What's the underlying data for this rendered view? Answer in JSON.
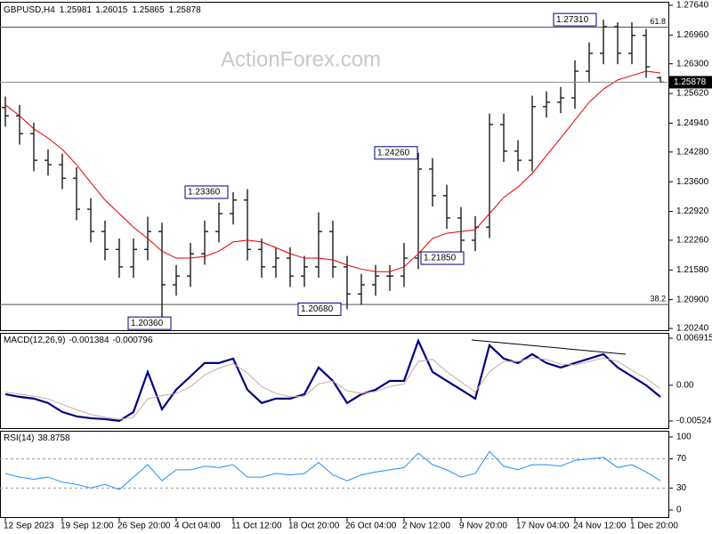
{
  "header": {
    "symbol": "GBPUSD,H4",
    "ohlc": [
      1.25981,
      1.26015,
      1.25865,
      1.25878
    ]
  },
  "watermark": "ActionForex.com",
  "chart_data": [
    {
      "type": "ohlc",
      "color": "#1c1c1c",
      "categories": [
        "12 Sep 2023",
        null,
        null,
        null,
        "19 Sep 12:00",
        null,
        null,
        null,
        "26 Sep 20:00",
        null,
        null,
        null,
        "4 Oct 04:00",
        null,
        null,
        null,
        "11 Oct 12:00",
        null,
        null,
        null,
        "18 Oct 20:00",
        null,
        null,
        null,
        "26 Oct 04:00",
        null,
        null,
        null,
        "2 Nov 12:00",
        null,
        null,
        null,
        "9 Nov 20:00",
        null,
        null,
        null,
        "17 Nov 04:00",
        null,
        null,
        null,
        "24 Nov 12:00",
        null,
        null,
        null,
        "1 Dec 20:00",
        null,
        null
      ],
      "open": [
        1.253,
        1.2511,
        1.247,
        1.2409,
        1.2399,
        1.2368,
        1.2297,
        1.2246,
        1.2205,
        1.2165,
        1.2205,
        1.2246,
        1.2124,
        1.2144,
        1.2195,
        1.2246,
        1.2287,
        1.2318,
        1.2205,
        1.2165,
        1.2185,
        1.2144,
        1.2165,
        1.2246,
        1.2165,
        1.2103,
        1.2124,
        1.2144,
        1.2144,
        1.2185,
        1.2389,
        1.2328,
        1.2277,
        1.2226,
        1.2256,
        1.2491,
        1.243,
        1.2409,
        1.2532,
        1.2542,
        1.2552,
        1.2613,
        1.2654,
        1.2715,
        1.2654,
        1.2695,
        1.25981
      ],
      "high": [
        1.2555,
        1.2536,
        1.2495,
        1.2434,
        1.2424,
        1.2393,
        1.2322,
        1.2271,
        1.223,
        1.223,
        1.228,
        1.2266,
        1.2169,
        1.222,
        1.2271,
        1.2312,
        1.2336,
        1.2343,
        1.223,
        1.221,
        1.221,
        1.219,
        1.229,
        1.2271,
        1.219,
        1.2149,
        1.2169,
        1.2169,
        1.222,
        1.2426,
        1.2414,
        1.2353,
        1.2302,
        1.2281,
        1.2516,
        1.2516,
        1.2455,
        1.2557,
        1.2567,
        1.2577,
        1.2638,
        1.2679,
        1.2731,
        1.2725,
        1.2725,
        1.271,
        1.26015
      ],
      "low": [
        1.2486,
        1.2445,
        1.2384,
        1.2374,
        1.2343,
        1.2272,
        1.2221,
        1.218,
        1.214,
        1.214,
        1.218,
        1.2036,
        1.2099,
        1.2119,
        1.217,
        1.2221,
        1.2262,
        1.218,
        1.214,
        1.214,
        1.2119,
        1.2119,
        1.214,
        1.214,
        1.2068,
        1.2078,
        1.2099,
        1.211,
        1.2119,
        1.216,
        1.2303,
        1.2252,
        1.2185,
        1.2201,
        1.2231,
        1.2405,
        1.2384,
        1.2384,
        1.2507,
        1.2517,
        1.2527,
        1.2588,
        1.2629,
        1.2629,
        1.2629,
        1.2598,
        1.25865
      ],
      "close": [
        1.2511,
        1.247,
        1.2409,
        1.2399,
        1.2368,
        1.2297,
        1.2246,
        1.2205,
        1.2165,
        1.2205,
        1.2246,
        1.2124,
        1.2144,
        1.2195,
        1.2246,
        1.2287,
        1.2318,
        1.2205,
        1.2165,
        1.2185,
        1.2144,
        1.2165,
        1.2246,
        1.2165,
        1.2103,
        1.2124,
        1.2144,
        1.2144,
        1.2185,
        1.2389,
        1.2328,
        1.2277,
        1.2226,
        1.2256,
        1.2491,
        1.243,
        1.2409,
        1.2532,
        1.2542,
        1.2552,
        1.2613,
        1.2654,
        1.2715,
        1.2654,
        1.2695,
        1.2623,
        1.25878
      ],
      "overlays": [
        {
          "color": "#e00000",
          "values": [
            1.2536,
            1.2511,
            1.2481,
            1.246,
            1.2434,
            1.2399,
            1.2358,
            1.2318,
            1.2287,
            1.2256,
            1.223,
            1.2201,
            1.2185,
            1.2185,
            1.2189,
            1.2201,
            1.2222,
            1.2226,
            1.2222,
            1.2209,
            1.2195,
            1.2185,
            1.2185,
            1.2181,
            1.2169,
            1.216,
            1.2154,
            1.2154,
            1.2165,
            1.2195,
            1.223,
            1.2242,
            1.2246,
            1.225,
            1.2287,
            1.2324,
            1.2348,
            1.2379,
            1.242,
            1.246,
            1.2501,
            1.2542,
            1.2572,
            1.2593,
            1.2603,
            1.2613,
            1.2609
          ]
        }
      ],
      "ylim": [
        1.2018,
        1.2772
      ],
      "yticks": [
        {
          "value": 1.2764,
          "label": "1.27640"
        },
        {
          "value": 1.2696,
          "label": "1.26960"
        },
        {
          "value": 1.263,
          "label": "1.26300"
        },
        {
          "value": 1.2562,
          "label": "1.25620"
        },
        {
          "value": 1.2494,
          "label": "1.24940"
        },
        {
          "value": 1.2428,
          "label": "1.24280"
        },
        {
          "value": 1.236,
          "label": "1.23600"
        },
        {
          "value": 1.2292,
          "label": "1.22920"
        },
        {
          "value": 1.2226,
          "label": "1.22260"
        },
        {
          "value": 1.2158,
          "label": "1.21580"
        },
        {
          "value": 1.209,
          "label": "1.20900"
        },
        {
          "value": 1.2024,
          "label": "1.20240"
        }
      ],
      "current_price": 1.25878,
      "levels": [
        {
          "value": 1.2714,
          "label": "61.8"
        },
        {
          "value": 1.2079,
          "label": "38.2"
        }
      ],
      "annotations": [
        {
          "value": 1.2731,
          "label": "1.27310"
        },
        {
          "value": 1.2426,
          "label": "1.24260"
        },
        {
          "value": 1.2336,
          "label": "1.23360"
        },
        {
          "value": 1.2185,
          "label": "1.21850"
        },
        {
          "value": 1.2036,
          "label": "1.20360"
        },
        {
          "value": 1.2068,
          "label": "1.20680"
        }
      ],
      "grid": false
    },
    {
      "type": "line",
      "title": "MACD(12,26,9)",
      "readouts": [
        -0.001384,
        -0.000796
      ],
      "series": [
        {
          "color": "#000080",
          "width": 2.2,
          "values": [
            -0.00131,
            -0.0017,
            -0.00196,
            -0.00261,
            -0.00392,
            -0.00457,
            -0.00484,
            -0.00497,
            -0.00523,
            -0.00392,
            0.00196,
            -0.00353,
            -0.00065,
            0.00131,
            0.00327,
            0.00327,
            0.00392,
            -0.00065,
            -0.00261,
            -0.00196,
            -0.00196,
            -0.00131,
            0.00261,
            0.00065,
            -0.00261,
            -0.00131,
            -0.00065,
            0.00065,
            0.00065,
            0.00654,
            0.00196,
            0.00065,
            -0.00065,
            -0.00196,
            0.00588,
            0.00392,
            0.00327,
            0.00457,
            0.00327,
            0.00261,
            0.00327,
            0.00392,
            0.00457,
            0.00261,
            0.00131,
            0,
            -0.0017
          ]
        },
        {
          "color": "#c8a8a8",
          "width": 1,
          "values": [
            -0.001,
            -0.0013,
            -0.0016,
            -0.002,
            -0.0028,
            -0.0036,
            -0.0043,
            -0.0047,
            -0.005,
            -0.0047,
            -0.002,
            -0.0015,
            -0.0012,
            -0.0002,
            0.0015,
            0.0025,
            0.0032,
            0.0018,
            -0.0002,
            -0.0012,
            -0.0017,
            -0.0016,
            0.0002,
            0.0006,
            -0.0008,
            -0.0012,
            -0.0009,
            -0.0002,
            0.0002,
            0.0035,
            0.0038,
            0.002,
            0.0005,
            -0.001,
            0.002,
            0.0035,
            0.0035,
            0.004,
            0.0038,
            0.0031,
            0.003,
            0.0035,
            0.004,
            0.0035,
            0.0022,
            0.001,
            -0.0005
          ]
        }
      ],
      "ylim": [
        -0.00642,
        0.0077
      ],
      "yticks": [
        0.006915,
        {
          "value": 0,
          "label": "0.00"
        },
        -0.005241
      ],
      "grid": false
    },
    {
      "type": "line",
      "title": "RSI(14)",
      "readouts": [
        38.8758
      ],
      "series": [
        {
          "color": "#1e90ff",
          "width": 1,
          "values": [
            50,
            45,
            42,
            45,
            38,
            35,
            30,
            35,
            28,
            45,
            62,
            40,
            55,
            55,
            60,
            58,
            62,
            45,
            45,
            50,
            48,
            50,
            65,
            48,
            40,
            48,
            52,
            55,
            58,
            78,
            62,
            55,
            45,
            50,
            80,
            60,
            55,
            62,
            62,
            60,
            68,
            70,
            72,
            58,
            62,
            52,
            40
          ]
        }
      ],
      "ylim": [
        -11,
        108.5
      ],
      "yticks": [
        100,
        70,
        30,
        0
      ],
      "levels": [
        70,
        30
      ],
      "grid": false
    }
  ]
}
